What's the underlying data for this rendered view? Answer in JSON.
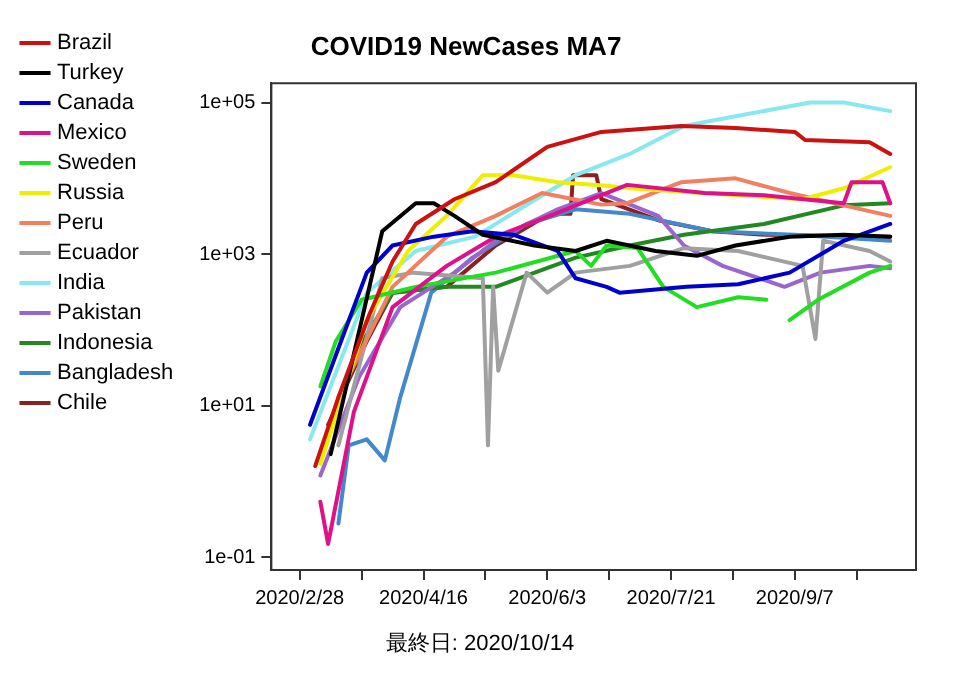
{
  "chart_data": {
    "type": "line",
    "title": "COVID19 NewCases MA7",
    "annotations": [
      "最終日: 2020/10/14"
    ],
    "log": "y",
    "legend": "top left",
    "grid": false,
    "marker": "none",
    "line_style": "solid",
    "xlim": [
      "2020-02-17",
      "2020-10-24"
    ],
    "xticks": [
      {
        "value": "2020-02-28",
        "label": "2020/2/28"
      },
      {
        "value": "2020-03-23",
        "label": null
      },
      {
        "value": "2020-04-16",
        "label": "2020/4/16"
      },
      {
        "value": "2020-05-10",
        "label": null
      },
      {
        "value": "2020-06-03",
        "label": "2020/6/3"
      },
      {
        "value": "2020-06-27",
        "label": null
      },
      {
        "value": "2020-07-21",
        "label": "2020/7/21"
      },
      {
        "value": "2020-08-14",
        "label": null
      },
      {
        "value": "2020-09-07",
        "label": "2020/9/7"
      },
      {
        "value": "2020-10-01",
        "label": null
      }
    ],
    "ylim": [
      0.068,
      180000
    ],
    "yticks": [
      {
        "value": 0.1,
        "label": "1e-01"
      },
      {
        "value": 10,
        "label": "1e+01"
      },
      {
        "value": 1000,
        "label": "1e+03"
      },
      {
        "value": 100000,
        "label": "1e+05"
      }
    ],
    "series": [
      {
        "name": "Brazil",
        "color": "#cc1111",
        "x": [
          "2020-03-05",
          "2020-03-14",
          "2020-03-26",
          "2020-04-04",
          "2020-04-13",
          "2020-04-28",
          "2020-05-14",
          "2020-06-03",
          "2020-06-24",
          "2020-07-25",
          "2020-08-15",
          "2020-09-07",
          "2020-09-11",
          "2020-10-06",
          "2020-10-14"
        ],
        "values": [
          1.6,
          13,
          160,
          800,
          2500,
          5300,
          8900,
          26000,
          41000,
          49000,
          46000,
          41000,
          32000,
          30000,
          21000
        ]
      },
      {
        "name": "Turkey",
        "color": "#000000",
        "x": [
          "2020-03-11",
          "2020-03-31",
          "2020-04-13",
          "2020-04-20",
          "2020-04-28",
          "2020-05-09",
          "2020-05-29",
          "2020-06-14",
          "2020-06-26",
          "2020-07-15",
          "2020-07-31",
          "2020-08-15",
          "2020-09-05",
          "2020-09-26",
          "2020-10-14"
        ],
        "values": [
          2.3,
          2000,
          4700,
          4700,
          3200,
          1800,
          1300,
          1100,
          1500,
          1100,
          950,
          1300,
          1700,
          1800,
          1700
        ]
      },
      {
        "name": "Canada",
        "color": "#0000cc",
        "x": [
          "2020-03-03",
          "2020-03-15",
          "2020-03-25",
          "2020-04-04",
          "2020-04-20",
          "2020-05-05",
          "2020-05-21",
          "2020-06-07",
          "2020-06-14",
          "2020-06-26",
          "2020-07-01",
          "2020-07-27",
          "2020-08-16",
          "2020-09-05",
          "2020-09-26",
          "2020-10-14"
        ],
        "values": [
          5.6,
          71,
          570,
          1300,
          1700,
          2000,
          1800,
          1100,
          480,
          370,
          310,
          370,
          400,
          570,
          1500,
          2500
        ]
      },
      {
        "name": "Mexico",
        "color": "#dd1188",
        "x": [
          "2020-03-07",
          "2020-03-10",
          "2020-03-20",
          "2020-04-04",
          "2020-04-25",
          "2020-05-14",
          "2020-06-04",
          "2020-06-24",
          "2020-07-04",
          "2020-08-03",
          "2020-08-26",
          "2020-09-26",
          "2020-09-29",
          "2020-10-11",
          "2020-10-14"
        ],
        "values": [
          0.54,
          0.15,
          8.3,
          200,
          700,
          1700,
          3200,
          6000,
          8200,
          6400,
          6000,
          4700,
          8900,
          8900,
          4700
        ]
      },
      {
        "name": "Sweden",
        "color": "#22dd22",
        "x": [
          "2020-03-07",
          "2020-03-13",
          "2020-03-23",
          "2020-04-13",
          "2020-05-14",
          "2020-06-14",
          "2020-06-20",
          "2020-06-26",
          "2020-07-08",
          "2020-07-18",
          "2020-07-31",
          "2020-08-16",
          "2020-08-27",
          "2020-09-01",
          "2020-09-05",
          "2020-09-16",
          "2020-10-06",
          "2020-10-14"
        ],
        "values": [
          18,
          71,
          250,
          370,
          570,
          1100,
          700,
          1300,
          1200,
          370,
          200,
          270,
          250,
          null,
          135,
          250,
          570,
          700
        ]
      },
      {
        "name": "Russia",
        "color": "#eeee00",
        "x": [
          "2020-03-07",
          "2020-03-25",
          "2020-04-10",
          "2020-04-25",
          "2020-05-09",
          "2020-05-21",
          "2020-06-07",
          "2020-06-26",
          "2020-07-05",
          "2020-08-16",
          "2020-09-10",
          "2020-09-26",
          "2020-10-14"
        ],
        "values": [
          1.7,
          135,
          1100,
          3200,
          11000,
          11000,
          8900,
          8000,
          7400,
          6000,
          5300,
          7400,
          14000
        ]
      },
      {
        "name": "Peru",
        "color": "#f08060",
        "x": [
          "2020-03-14",
          "2020-04-04",
          "2020-04-25",
          "2020-05-14",
          "2020-06-01",
          "2020-06-24",
          "2020-07-04",
          "2020-07-25",
          "2020-08-15",
          "2020-09-05",
          "2020-09-26",
          "2020-10-14"
        ],
        "values": [
          13,
          370,
          1700,
          3200,
          6400,
          4500,
          4700,
          8900,
          10000,
          6400,
          4400,
          3200
        ]
      },
      {
        "name": "Ecuador",
        "color": "#a0a0a0",
        "x": [
          "2020-03-14",
          "2020-03-31",
          "2020-04-12",
          "2020-05-09",
          "2020-05-11",
          "2020-05-13",
          "2020-05-15",
          "2020-05-26",
          "2020-06-03",
          "2020-06-14",
          "2020-07-05",
          "2020-07-26",
          "2020-08-16",
          "2020-09-10",
          "2020-09-15",
          "2020-09-18",
          "2020-10-06",
          "2020-10-14"
        ],
        "values": [
          3,
          480,
          570,
          480,
          3,
          370,
          29,
          570,
          310,
          570,
          700,
          1200,
          1100,
          700,
          76,
          1500,
          1100,
          800
        ]
      },
      {
        "name": "India",
        "color": "#88e8f0",
        "x": [
          "2020-03-03",
          "2020-03-25",
          "2020-04-13",
          "2020-05-06",
          "2020-05-27",
          "2020-06-14",
          "2020-07-05",
          "2020-07-26",
          "2020-08-16",
          "2020-09-13",
          "2020-09-26",
          "2020-10-14"
        ],
        "values": [
          3.6,
          310,
          1100,
          1700,
          4700,
          11000,
          21000,
          49000,
          67000,
          100000,
          100000,
          77000
        ]
      },
      {
        "name": "Pakistan",
        "color": "#9966cc",
        "x": [
          "2020-03-07",
          "2020-03-22",
          "2020-04-07",
          "2020-04-28",
          "2020-05-16",
          "2020-06-07",
          "2020-06-24",
          "2020-07-16",
          "2020-07-26",
          "2020-08-10",
          "2020-09-03",
          "2020-09-17",
          "2020-10-06",
          "2020-10-14"
        ],
        "values": [
          1.2,
          24,
          200,
          570,
          1700,
          3900,
          6400,
          3200,
          1300,
          700,
          370,
          570,
          700,
          650
        ]
      },
      {
        "name": "Indonesia",
        "color": "#228822",
        "x": [
          "2020-03-20",
          "2020-04-04",
          "2020-04-25",
          "2020-05-14",
          "2020-06-14",
          "2020-07-05",
          "2020-07-26",
          "2020-08-26",
          "2020-09-26",
          "2020-10-14"
        ],
        "values": [
          46,
          310,
          370,
          370,
          900,
          1300,
          1800,
          2500,
          4400,
          4700
        ]
      },
      {
        "name": "Bangladesh",
        "color": "#4488cc",
        "x": [
          "2020-03-14",
          "2020-03-18",
          "2020-03-25",
          "2020-04-01",
          "2020-04-07",
          "2020-04-19",
          "2020-05-05",
          "2020-05-26",
          "2020-06-14",
          "2020-07-05",
          "2020-08-06",
          "2020-09-07",
          "2020-10-14"
        ],
        "values": [
          0.28,
          3,
          3.6,
          1.9,
          13,
          310,
          900,
          2500,
          3900,
          3400,
          2000,
          1800,
          1500
        ]
      },
      {
        "name": "Chile",
        "color": "#882222",
        "x": [
          "2020-03-10",
          "2020-03-25",
          "2020-04-04",
          "2020-04-25",
          "2020-05-14",
          "2020-06-04",
          "2020-06-12",
          "2020-06-13",
          "2020-06-22",
          "2020-06-24",
          "2020-07-16",
          "2020-08-06",
          "2020-08-27",
          "2020-10-14"
        ],
        "values": [
          5.6,
          71,
          310,
          370,
          1300,
          3400,
          3400,
          11000,
          11000,
          5300,
          2800,
          2000,
          1800,
          1700
        ]
      }
    ]
  }
}
